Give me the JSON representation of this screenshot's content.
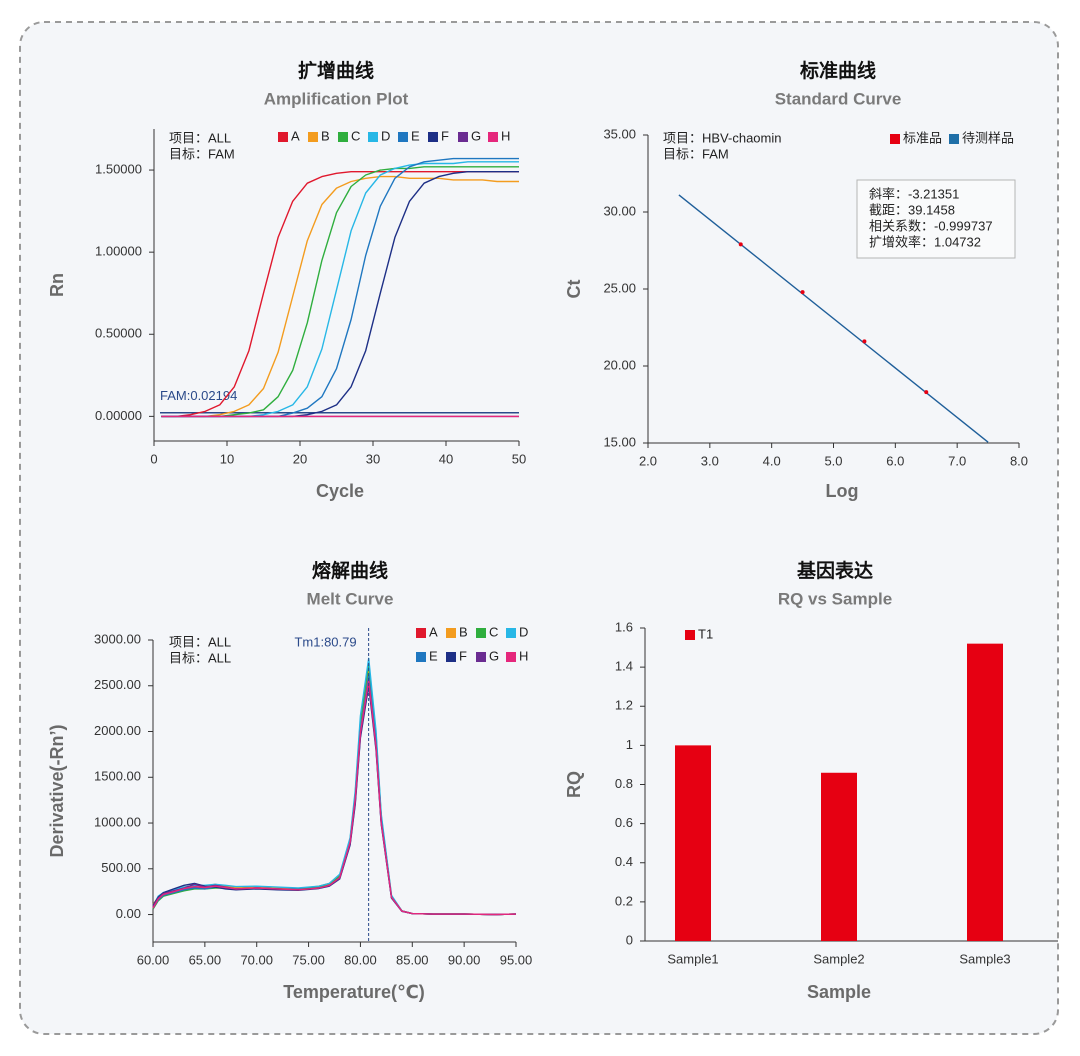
{
  "chart_data": [
    {
      "type": "line",
      "title": "扩增曲线",
      "subtitle": "Amplification Plot",
      "xlabel": "Cycle",
      "ylabel": "Rn",
      "annotations": [
        "项目：ALL",
        "目标：FAM"
      ],
      "threshold": {
        "value": 0.02194,
        "label": "FAM:0.02194",
        "color": "#2b4a8a"
      },
      "x": [
        1,
        3,
        5,
        7,
        9,
        11,
        13,
        15,
        17,
        19,
        21,
        23,
        25,
        27,
        29,
        31,
        33,
        35,
        37,
        39,
        41,
        43,
        45,
        47,
        49,
        50
      ],
      "series": [
        {
          "name": "A",
          "color": "#e0182d",
          "values": [
            0.0,
            0.0,
            0.01,
            0.03,
            0.07,
            0.18,
            0.4,
            0.75,
            1.09,
            1.31,
            1.42,
            1.46,
            1.48,
            1.49,
            1.49,
            1.49,
            1.49,
            1.49,
            1.49,
            1.49,
            1.49,
            1.49,
            1.49,
            1.49,
            1.49,
            1.49
          ]
        },
        {
          "name": "B",
          "color": "#f39c1f",
          "values": [
            0.0,
            0.0,
            0.0,
            0.0,
            0.01,
            0.03,
            0.07,
            0.17,
            0.39,
            0.73,
            1.07,
            1.29,
            1.39,
            1.43,
            1.45,
            1.46,
            1.46,
            1.45,
            1.45,
            1.45,
            1.44,
            1.44,
            1.44,
            1.43,
            1.43,
            1.43
          ]
        },
        {
          "name": "C",
          "color": "#2fae3e",
          "values": [
            0,
            0,
            0,
            0,
            0,
            0.01,
            0.02,
            0.04,
            0.12,
            0.28,
            0.57,
            0.95,
            1.24,
            1.4,
            1.47,
            1.5,
            1.51,
            1.51,
            1.52,
            1.52,
            1.52,
            1.52,
            1.52,
            1.52,
            1.52,
            1.52
          ]
        },
        {
          "name": "D",
          "color": "#27b7e6",
          "values": [
            0,
            0,
            0,
            0,
            0,
            0,
            0,
            0.01,
            0.03,
            0.07,
            0.18,
            0.41,
            0.77,
            1.13,
            1.36,
            1.47,
            1.51,
            1.53,
            1.54,
            1.54,
            1.54,
            1.55,
            1.55,
            1.55,
            1.55,
            1.55
          ]
        },
        {
          "name": "E",
          "color": "#1f77c0",
          "values": [
            0,
            0,
            0,
            0,
            0,
            0,
            0,
            0,
            0,
            0.02,
            0.05,
            0.12,
            0.29,
            0.59,
            0.98,
            1.28,
            1.45,
            1.52,
            1.55,
            1.56,
            1.57,
            1.57,
            1.57,
            1.57,
            1.57,
            1.57
          ]
        },
        {
          "name": "F",
          "color": "#1d2f86",
          "values": [
            0,
            0,
            0,
            0,
            0,
            0,
            0,
            0,
            0,
            0,
            0.01,
            0.03,
            0.07,
            0.18,
            0.4,
            0.75,
            1.09,
            1.31,
            1.42,
            1.46,
            1.48,
            1.49,
            1.49,
            1.49,
            1.49,
            1.49
          ]
        },
        {
          "name": "G",
          "color": "#6a2c91",
          "values": [
            0,
            0,
            0,
            0,
            0,
            0,
            0,
            0,
            0,
            0,
            0,
            0,
            0,
            0,
            0,
            0,
            0,
            0,
            0,
            0,
            0,
            0,
            0,
            0,
            0,
            0
          ]
        },
        {
          "name": "H",
          "color": "#e5277c",
          "values": [
            0,
            0,
            0,
            0,
            0,
            0,
            0,
            0,
            0,
            0,
            0,
            0,
            0,
            0,
            0,
            0,
            0,
            0,
            0,
            0,
            0,
            0,
            0,
            0,
            0,
            0
          ]
        }
      ],
      "xlim": [
        0,
        50
      ],
      "xticks": [
        0,
        10,
        20,
        30,
        40,
        50
      ],
      "ylim": [
        -0.15,
        1.75
      ],
      "yticks": [
        {
          "value": 0,
          "label": "0.00000"
        },
        {
          "value": 0.5,
          "label": "0.50000"
        },
        {
          "value": 1,
          "label": "1.00000"
        },
        {
          "value": 1.5,
          "label": "1.50000"
        }
      ],
      "legend_position": "top-right",
      "grid": false
    },
    {
      "type": "scatter",
      "title": "标准曲线",
      "subtitle": "Standard Curve",
      "xlabel": "Log",
      "ylabel": "Ct",
      "annotations": [
        "项目：HBV-chaomin",
        "目标：FAM"
      ],
      "stats": [
        "斜率：-3.21351",
        "截距：39.1458",
        "相关系数：-0.999737",
        "扩增效率：1.04732"
      ],
      "series": [
        {
          "name": "标准品",
          "color": "#e60012",
          "x": [
            3.5,
            4.5,
            5.5,
            6.5
          ],
          "values": [
            27.9,
            24.8,
            21.6,
            18.3
          ]
        },
        {
          "name": "待测样品",
          "color": "#1f6fa8",
          "x": [],
          "values": []
        }
      ],
      "fit": {
        "x": [
          2.5,
          7.5
        ],
        "values": [
          31.11,
          15.05
        ],
        "color": "#1f5f9a"
      },
      "xlim": [
        2,
        8
      ],
      "xticks": [
        {
          "value": 2,
          "label": "2.0"
        },
        {
          "value": 3,
          "label": "3.0"
        },
        {
          "value": 4,
          "label": "4.0"
        },
        {
          "value": 5,
          "label": "5.0"
        },
        {
          "value": 6,
          "label": "6.0"
        },
        {
          "value": 7,
          "label": "7.0"
        },
        {
          "value": 8,
          "label": "8.0"
        }
      ],
      "ylim": [
        15,
        35
      ],
      "yticks": [
        {
          "value": 15,
          "label": "15.00"
        },
        {
          "value": 20,
          "label": "20.00"
        },
        {
          "value": 25,
          "label": "25.00"
        },
        {
          "value": 30,
          "label": "30.00"
        },
        {
          "value": 35,
          "label": "35.00"
        }
      ],
      "legend_position": "top-right",
      "grid": false
    },
    {
      "type": "line",
      "title": "熔解曲线",
      "subtitle": "Melt Curve",
      "xlabel": "Temperature(℃)",
      "ylabel": "Derivative(-Rn’)",
      "annotations": [
        "项目：ALL",
        "目标：ALL"
      ],
      "vline": {
        "value": 80.79,
        "label": "Tm1:80.79",
        "color": "#2b4a8a"
      },
      "x": [
        60,
        60.5,
        61,
        62,
        63,
        64,
        65,
        66,
        67,
        68,
        70,
        72,
        74,
        75,
        76,
        77,
        78,
        79,
        79.5,
        80,
        80.8,
        81.5,
        82,
        83,
        84,
        85,
        87,
        90,
        93,
        95
      ],
      "series": [
        {
          "name": "A",
          "color": "#e0182d",
          "values": [
            80,
            170,
            210,
            240,
            280,
            300,
            290,
            310,
            300,
            285,
            295,
            285,
            275,
            285,
            295,
            325,
            410,
            780,
            1250,
            2000,
            2580,
            1850,
            1020,
            190,
            40,
            10,
            5,
            5,
            0,
            5
          ]
        },
        {
          "name": "B",
          "color": "#f39c1f",
          "values": [
            110,
            190,
            230,
            260,
            300,
            320,
            310,
            330,
            310,
            295,
            305,
            295,
            285,
            295,
            310,
            340,
            430,
            800,
            1280,
            2060,
            2680,
            1920,
            1060,
            200,
            40,
            10,
            5,
            5,
            0,
            5
          ]
        },
        {
          "name": "C",
          "color": "#2fae3e",
          "values": [
            60,
            150,
            200,
            230,
            260,
            280,
            280,
            290,
            290,
            280,
            290,
            280,
            275,
            290,
            300,
            320,
            420,
            820,
            1320,
            2120,
            2740,
            1970,
            1080,
            200,
            40,
            10,
            5,
            5,
            0,
            5
          ]
        },
        {
          "name": "D",
          "color": "#27b7e6",
          "values": [
            90,
            200,
            240,
            270,
            300,
            320,
            320,
            330,
            320,
            305,
            310,
            300,
            290,
            300,
            310,
            340,
            440,
            840,
            1350,
            2170,
            2800,
            2010,
            1100,
            210,
            40,
            10,
            5,
            5,
            0,
            5
          ]
        },
        {
          "name": "E",
          "color": "#1f77c0",
          "values": [
            70,
            160,
            210,
            240,
            270,
            290,
            280,
            300,
            290,
            275,
            285,
            275,
            270,
            280,
            290,
            315,
            400,
            780,
            1250,
            2010,
            2620,
            1880,
            1030,
            190,
            40,
            10,
            5,
            5,
            0,
            5
          ]
        },
        {
          "name": "F",
          "color": "#1d2f86",
          "values": [
            100,
            190,
            240,
            280,
            320,
            340,
            310,
            300,
            280,
            270,
            280,
            270,
            265,
            275,
            285,
            310,
            390,
            760,
            1200,
            1930,
            2500,
            1800,
            990,
            180,
            35,
            10,
            5,
            5,
            0,
            5
          ]
        },
        {
          "name": "G",
          "color": "#6a2c91",
          "values": [
            90,
            180,
            230,
            260,
            290,
            330,
            300,
            320,
            300,
            280,
            290,
            280,
            275,
            280,
            290,
            315,
            395,
            770,
            1220,
            1950,
            2540,
            1820,
            1000,
            185,
            35,
            10,
            5,
            5,
            0,
            5
          ]
        },
        {
          "name": "H",
          "color": "#e5277c",
          "values": [
            70,
            170,
            220,
            250,
            285,
            305,
            295,
            310,
            295,
            280,
            290,
            280,
            270,
            280,
            290,
            318,
            405,
            790,
            1260,
            1990,
            2560,
            1840,
            1010,
            190,
            38,
            10,
            5,
            5,
            0,
            5
          ]
        }
      ],
      "xlim": [
        60,
        95
      ],
      "xticks": [
        {
          "value": 60,
          "label": "60.00"
        },
        {
          "value": 65,
          "label": "65.00"
        },
        {
          "value": 70,
          "label": "70.00"
        },
        {
          "value": 75,
          "label": "75.00"
        },
        {
          "value": 80,
          "label": "80.00"
        },
        {
          "value": 85,
          "label": "85.00"
        },
        {
          "value": 90,
          "label": "90.00"
        },
        {
          "value": 95,
          "label": "95.00"
        }
      ],
      "ylim": [
        -300,
        3000
      ],
      "yticks": [
        {
          "value": 0,
          "label": "0.00"
        },
        {
          "value": 500,
          "label": "500.00"
        },
        {
          "value": 1000,
          "label": "1000.00"
        },
        {
          "value": 1500,
          "label": "1500.00"
        },
        {
          "value": 2000,
          "label": "2000.00"
        },
        {
          "value": 2500,
          "label": "2500.00"
        },
        {
          "value": 3000,
          "label": "3000.00"
        }
      ],
      "legend_position": "top-right",
      "grid": false
    },
    {
      "type": "bar",
      "title": "基因表达",
      "subtitle": "RQ vs Sample",
      "xlabel": "Sample",
      "ylabel": "RQ",
      "categories": [
        "Sample1",
        "Sample2",
        "Sample3"
      ],
      "series": [
        {
          "name": "T1",
          "color": "#e60012",
          "values": [
            1,
            0.86,
            1.52
          ]
        }
      ],
      "ylim": [
        0,
        1.6
      ],
      "yticks": [
        0,
        0.2,
        0.4,
        0.6,
        0.8,
        1,
        1.2,
        1.4,
        1.6
      ],
      "legend_position": "top-left",
      "grid": false
    }
  ]
}
